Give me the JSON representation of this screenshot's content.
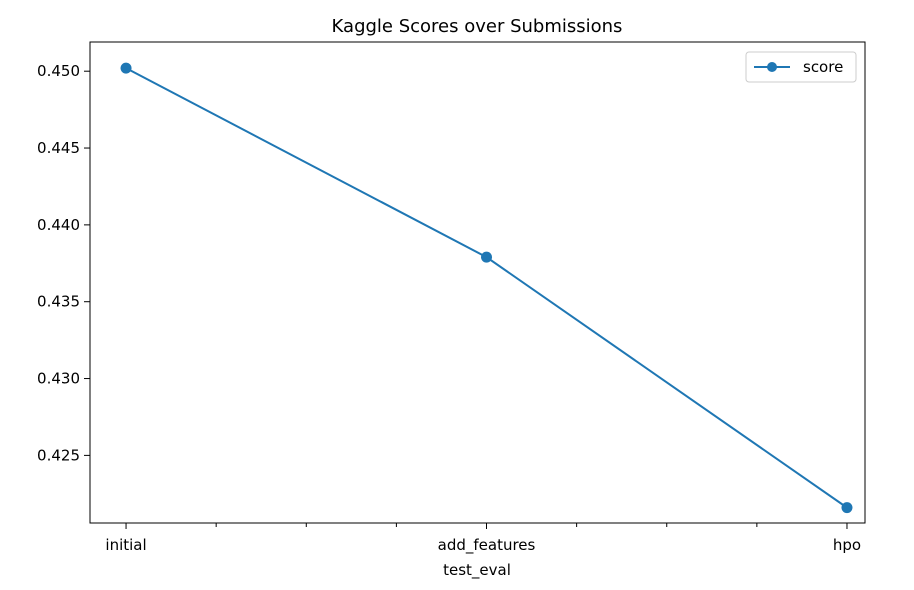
{
  "chart_data": {
    "type": "line",
    "title": "Kaggle Scores over Submissions",
    "xlabel": "test_eval",
    "ylabel": "",
    "categories": [
      "initial",
      "add_features",
      "hpo"
    ],
    "series": [
      {
        "name": "score",
        "values": [
          0.4502,
          0.4379,
          0.4216
        ],
        "color": "#1f77b4",
        "marker": "circle"
      }
    ],
    "ylim": [
      0.4206,
      0.4519
    ],
    "yticks": [
      0.425,
      0.43,
      0.435,
      0.44,
      0.445,
      0.45
    ],
    "ytick_labels": [
      "0.425",
      "0.430",
      "0.435",
      "0.440",
      "0.445",
      "0.450"
    ],
    "xlim": [
      -0.1,
      2.05
    ],
    "minor_xticks": [
      0.25,
      0.5,
      0.75,
      1.25,
      1.5,
      1.75
    ],
    "grid": false,
    "legend": {
      "position": "top-right",
      "entries": [
        "score"
      ]
    }
  }
}
